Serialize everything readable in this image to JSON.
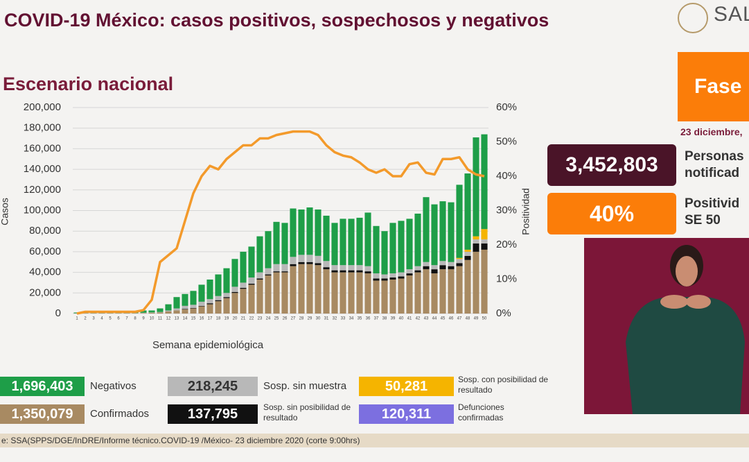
{
  "header": {
    "title": "COVID-19 México: casos positivos, sospechosos y negativos",
    "logo_text": "SAL"
  },
  "chart_data": {
    "type": "bar",
    "title": "Escenario nacional",
    "x_label": "Semana epidemiológica",
    "y_label": "Casos",
    "y2_label": "Positividad",
    "categories": [
      "1",
      "2",
      "3",
      "4",
      "5",
      "6",
      "7",
      "8",
      "9",
      "10",
      "11",
      "12",
      "13",
      "14",
      "15",
      "16",
      "17",
      "18",
      "19",
      "20",
      "21",
      "22",
      "23",
      "24",
      "25",
      "26",
      "27",
      "28",
      "29",
      "30",
      "31",
      "32",
      "33",
      "34",
      "35",
      "36",
      "37",
      "38",
      "39",
      "40",
      "41",
      "42",
      "43",
      "44",
      "45",
      "46",
      "47",
      "48",
      "49",
      "50"
    ],
    "series": [
      {
        "name": "Confirmados",
        "total": "1,350,079",
        "color": "#a88a62",
        "values": [
          200,
          300,
          300,
          300,
          300,
          300,
          300,
          300,
          500,
          800,
          1000,
          2000,
          3000,
          4000,
          5000,
          7000,
          9000,
          12000,
          15000,
          20000,
          24000,
          28000,
          33000,
          37000,
          40000,
          40000,
          46000,
          48000,
          48000,
          47000,
          43000,
          40000,
          40000,
          40000,
          40000,
          39000,
          32000,
          32000,
          33000,
          34000,
          37000,
          40000,
          43000,
          39000,
          43000,
          43000,
          46000,
          52000,
          60000,
          62000
        ]
      },
      {
        "name": "Sosp. sin posibilidad de resultado",
        "total": "137,795",
        "color": "#111111",
        "values": [
          0,
          0,
          0,
          0,
          0,
          0,
          0,
          0,
          0,
          0,
          0,
          0,
          0,
          500,
          500,
          500,
          1000,
          1000,
          1000,
          1000,
          1000,
          1000,
          1000,
          1000,
          1000,
          1000,
          2000,
          2000,
          2000,
          2000,
          2000,
          2000,
          2000,
          2000,
          2000,
          2000,
          2000,
          2000,
          2000,
          2000,
          2000,
          2000,
          3000,
          4000,
          4000,
          3000,
          3000,
          4000,
          8000,
          6000
        ]
      },
      {
        "name": "Sosp. sin muestra",
        "total": "218,245",
        "color": "#b8b8b8",
        "values": [
          100,
          200,
          200,
          200,
          200,
          200,
          200,
          200,
          300,
          300,
          500,
          1000,
          2000,
          3000,
          3000,
          4000,
          4000,
          4000,
          4000,
          5000,
          5000,
          6000,
          6000,
          6000,
          7000,
          7000,
          7000,
          7000,
          7000,
          7000,
          6000,
          5000,
          5000,
          5000,
          5000,
          5000,
          5000,
          4000,
          4000,
          4000,
          4000,
          4000,
          4000,
          4000,
          4000,
          4000,
          4000,
          4000,
          4000,
          4000
        ]
      },
      {
        "name": "Sosp. con posibilidad de resultado",
        "total": "50,281",
        "color": "#f5b400",
        "values": [
          0,
          0,
          0,
          0,
          0,
          0,
          0,
          0,
          0,
          0,
          0,
          0,
          0,
          0,
          0,
          0,
          0,
          0,
          0,
          0,
          0,
          0,
          0,
          0,
          0,
          0,
          0,
          0,
          0,
          0,
          0,
          0,
          0,
          0,
          0,
          0,
          0,
          0,
          0,
          0,
          0,
          0,
          0,
          0,
          0,
          0,
          1000,
          2000,
          3000,
          10000
        ]
      },
      {
        "name": "Negativos",
        "total": "1,696,403",
        "color": "#1e9e48",
        "values": [
          700,
          1500,
          1500,
          1500,
          1500,
          1500,
          1500,
          1500,
          2200,
          1900,
          3500,
          6000,
          11000,
          11500,
          13500,
          16500,
          19000,
          21000,
          24000,
          27000,
          30000,
          30000,
          35000,
          36000,
          41000,
          40000,
          47000,
          44000,
          46000,
          45000,
          44000,
          41000,
          45000,
          45000,
          46000,
          52000,
          46000,
          42000,
          49000,
          50000,
          49000,
          51000,
          63000,
          59000,
          58000,
          58000,
          71000,
          74000,
          96000,
          92000
        ]
      },
      {
        "type": "line",
        "axis": "y2",
        "color": "#f39a2b",
        "values": [
          0,
          0.5,
          0.5,
          0.5,
          0.5,
          0.5,
          0.5,
          0.5,
          1,
          4,
          15,
          17,
          19,
          27,
          35,
          40,
          43,
          42,
          45,
          47,
          49,
          49,
          51,
          51,
          52,
          52.5,
          53,
          53,
          53,
          52,
          49,
          47,
          46,
          45.5,
          44,
          42,
          41,
          42,
          40,
          40,
          43.5,
          44,
          41,
          40.5,
          45,
          45,
          45.5,
          42,
          40.5,
          40
        ]
      }
    ],
    "ylim": [
      0,
      200000
    ],
    "yticks": [
      0,
      {
        "value": 20000,
        "label": "20,000"
      },
      {
        "value": 40000,
        "label": "40,000"
      },
      {
        "value": 60000,
        "label": "60,000"
      },
      {
        "value": 80000,
        "label": "80,000"
      },
      {
        "value": 100000,
        "label": "100,000"
      },
      {
        "value": 120000,
        "label": "120,000"
      },
      {
        "value": 140000,
        "label": "140,000"
      },
      {
        "value": 160000,
        "label": "160,000"
      },
      {
        "value": 180000,
        "label": "180,000"
      },
      {
        "value": 200000,
        "label": "200,000"
      }
    ],
    "y2lim": [
      0,
      60
    ],
    "y2ticks": [
      {
        "value": 0,
        "label": "0%"
      },
      {
        "value": 10,
        "label": "10%"
      },
      {
        "value": 20,
        "label": "20%"
      },
      {
        "value": 30,
        "label": "30%"
      },
      {
        "value": 40,
        "label": "40%"
      },
      {
        "value": 50,
        "label": "50%"
      },
      {
        "value": 60,
        "label": "60%"
      }
    ],
    "grid": true
  },
  "deaths": {
    "label": "Defunciones confirmadas",
    "total": "120,311",
    "color": "#7c6fe0"
  },
  "side_panel": {
    "phase": "Fase",
    "date": "23 diciembre,",
    "notified_value": "3,452,803",
    "notified_label": "Personas\nnotificad",
    "positivity_value": "40%",
    "positivity_label": "Positivid\nSE 50"
  },
  "footer": {
    "source": "e: SSA(SPPS/DGE/InDRE/Informe técnico.COVID-19 /México- 23 diciembre 2020 (corte 9:00hrs)"
  }
}
